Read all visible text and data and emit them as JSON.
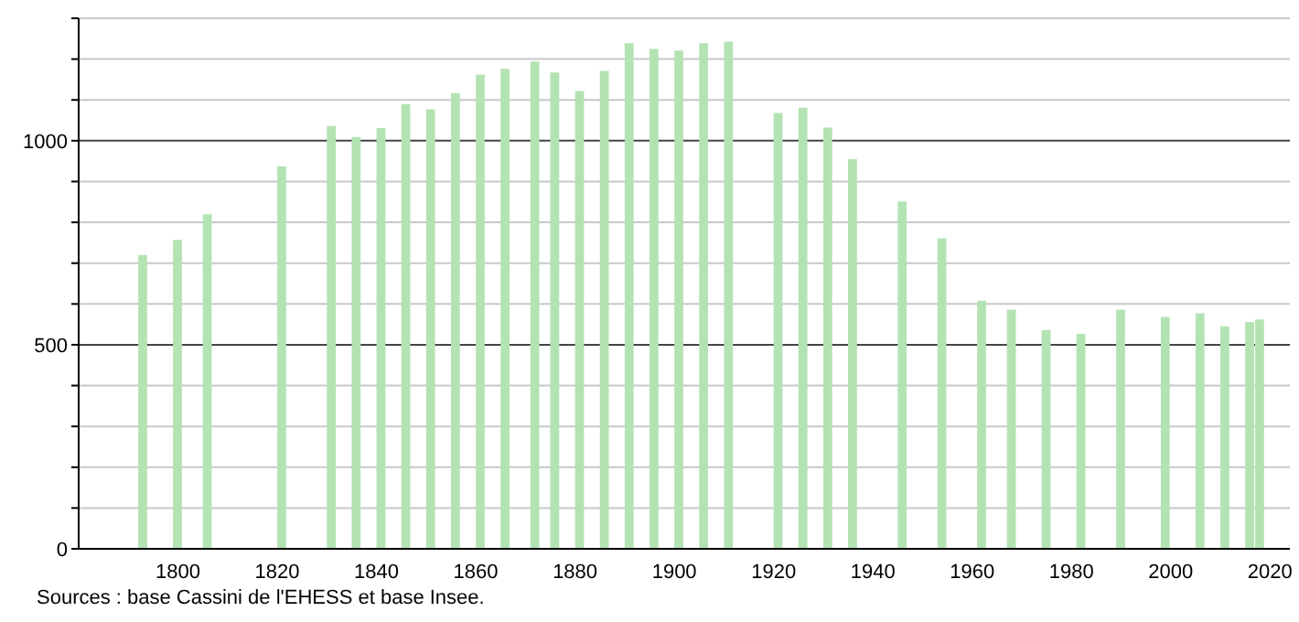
{
  "chart_data": {
    "type": "bar",
    "x": [
      1793,
      1800,
      1806,
      1821,
      1831,
      1836,
      1841,
      1846,
      1851,
      1856,
      1861,
      1866,
      1872,
      1876,
      1881,
      1886,
      1891,
      1896,
      1901,
      1906,
      1911,
      1921,
      1926,
      1931,
      1936,
      1946,
      1954,
      1962,
      1968,
      1975,
      1982,
      1990,
      1999,
      2006,
      2011,
      2016,
      2018
    ],
    "values": [
      720,
      757,
      820,
      937,
      1036,
      1009,
      1031,
      1090,
      1077,
      1117,
      1162,
      1176,
      1194,
      1167,
      1122,
      1171,
      1239,
      1225,
      1221,
      1239,
      1243,
      1068,
      1081,
      1032,
      955,
      851,
      761,
      608,
      586,
      536,
      527,
      586,
      568,
      577,
      545,
      556,
      562
    ],
    "color": "#b3e3b3",
    "xlim": [
      1780,
      2024
    ],
    "xticks": [
      1800,
      1820,
      1840,
      1860,
      1880,
      1900,
      1920,
      1940,
      1960,
      1980,
      2000,
      2020
    ],
    "ylim": [
      0,
      1300
    ],
    "yticks": [
      0,
      {
        "value": 100,
        "label": null
      },
      {
        "value": 200,
        "label": null
      },
      {
        "value": 300,
        "label": null
      },
      {
        "value": 400,
        "label": null
      },
      500,
      {
        "value": 600,
        "label": null
      },
      {
        "value": 700,
        "label": null
      },
      {
        "value": 800,
        "label": null
      },
      {
        "value": 900,
        "label": null
      },
      1000,
      {
        "value": 1100,
        "label": null
      },
      {
        "value": 1200,
        "label": null
      },
      {
        "value": 1300,
        "label": null
      }
    ],
    "grid": "y",
    "annotations": [
      "Sources : base Cassini de l'EHESS et base Insee."
    ]
  }
}
